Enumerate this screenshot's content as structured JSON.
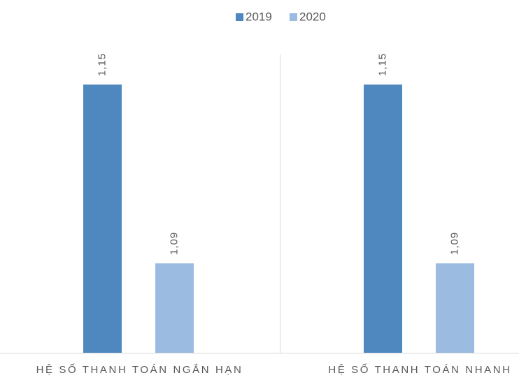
{
  "chart_data": {
    "type": "bar",
    "categories": [
      "HỆ SỐ THANH TOÁN NGẮN HẠN",
      "HỆ SỐ THANH TOÁN NHANH"
    ],
    "series": [
      {
        "name": "2019",
        "color": "#4f88bf",
        "values": [
          1.15,
          1.15
        ],
        "value_labels": [
          "1,15",
          "1,15"
        ]
      },
      {
        "name": "2020",
        "color": "#9bbbe0",
        "values": [
          1.09,
          1.09
        ],
        "value_labels": [
          "1,09",
          "1,09"
        ]
      }
    ],
    "ylim": [
      1.06,
      1.17
    ],
    "legend": "top"
  }
}
